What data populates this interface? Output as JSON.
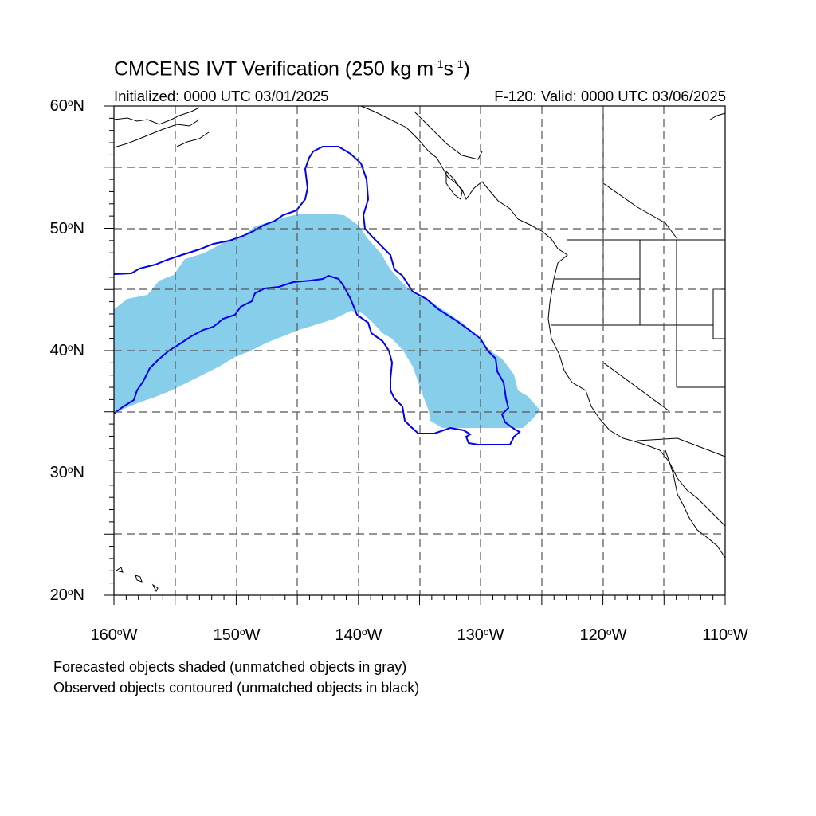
{
  "title": {
    "main": "CMCENS IVT Verification (250 kg m",
    "sup1": "-1",
    "s": "s",
    "sup2": "-1",
    "close": ")"
  },
  "subtitle_left": "Initialized: 0000 UTC 03/01/2025",
  "subtitle_right": "F-120: Valid: 0000 UTC 03/06/2025",
  "lat_labels": [
    "60",
    "50",
    "40",
    "30",
    "20"
  ],
  "lat_suffix": "N",
  "lon_labels": [
    "160",
    "150",
    "140",
    "130",
    "120",
    "110"
  ],
  "lon_suffix": "W",
  "degree_symbol": "o",
  "notes": [
    "Forecasted objects shaded (unmatched objects in gray)",
    "Observed objects contoured (unmatched objects in black)"
  ],
  "colors": {
    "forecast_fill": "#87ceeb",
    "observed_contour": "#0000ee",
    "grid": "#555555",
    "coastline": "#000000"
  }
}
